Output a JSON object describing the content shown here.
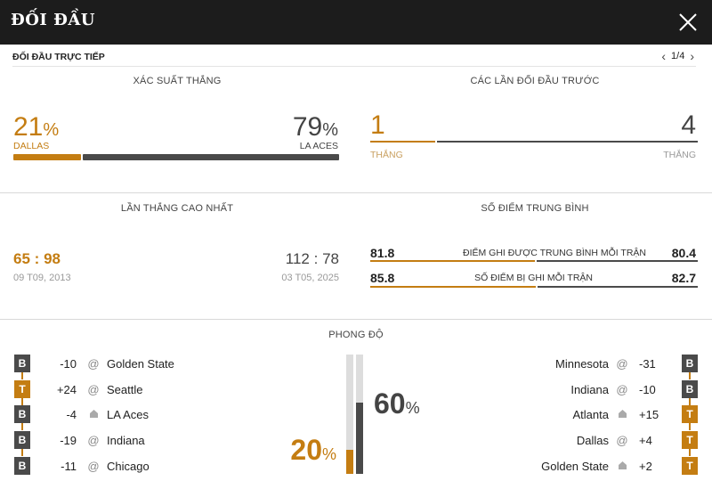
{
  "header": {
    "title": "ĐỐI ĐẦU"
  },
  "subheader": {
    "label": "ĐỐI ĐẦU TRỰC TIẾP",
    "page": "1/4"
  },
  "win_prob": {
    "label": "XÁC SUẤT THẮNG",
    "left_pct": "21",
    "left_team": "DALLAS",
    "right_pct": "79",
    "right_team": "LA ACES",
    "pct_sign": "%",
    "left_value": 21,
    "right_value": 79
  },
  "h2h": {
    "label": "CÁC LẦN ĐỐI ĐẦU TRƯỚC",
    "left_count": "1",
    "left_label": "THẮNG",
    "right_count": "4",
    "right_label": "THẮNG",
    "left_value": 1,
    "right_value": 4
  },
  "biggest_win": {
    "label": "LẦN THẮNG CAO NHẤT",
    "left_score_a": "65",
    "left_score_b": "98",
    "left_date": "09 T09, 2013",
    "right_score_a": "112",
    "right_score_b": "78",
    "right_date": "03 T05, 2025",
    "sep": ":"
  },
  "avg_points": {
    "label": "SỐ ĐIỂM TRUNG BÌNH",
    "rows": [
      {
        "left": "81.8",
        "caption": "ĐIỂM GHI ĐƯỢC TRUNG BÌNH MỖI TRẬN",
        "right": "80.4",
        "left_value": 81.8,
        "right_value": 80.4
      },
      {
        "left": "85.8",
        "caption": "SỐ ĐIỂM BỊ GHI MỖI TRẬN",
        "right": "82.7",
        "left_value": 85.8,
        "right_value": 82.7
      }
    ]
  },
  "form": {
    "label": "PHONG ĐỘ",
    "left_pct": "20",
    "right_pct": "60",
    "pct_sign": "%",
    "left_value": 20,
    "right_value": 60,
    "left": [
      {
        "result": "B",
        "diff": "-10",
        "venue": "@",
        "team": "Golden State"
      },
      {
        "result": "T",
        "diff": "+24",
        "venue": "@",
        "team": "Seattle"
      },
      {
        "result": "B",
        "diff": "-4",
        "venue": "home",
        "team": "LA Aces"
      },
      {
        "result": "B",
        "diff": "-19",
        "venue": "@",
        "team": "Indiana"
      },
      {
        "result": "B",
        "diff": "-11",
        "venue": "@",
        "team": "Chicago"
      }
    ],
    "right": [
      {
        "result": "B",
        "diff": "-31",
        "venue": "@",
        "team": "Minnesota"
      },
      {
        "result": "B",
        "diff": "-10",
        "venue": "@",
        "team": "Indiana"
      },
      {
        "result": "T",
        "diff": "+15",
        "venue": "home",
        "team": "Atlanta"
      },
      {
        "result": "T",
        "diff": "+4",
        "venue": "@",
        "team": "Dallas"
      },
      {
        "result": "T",
        "diff": "+2",
        "venue": "home",
        "team": "Golden State"
      }
    ]
  },
  "colors": {
    "accent": "#c47d12",
    "dark": "#4a4a4a",
    "header_bg": "#1c1c1c"
  }
}
